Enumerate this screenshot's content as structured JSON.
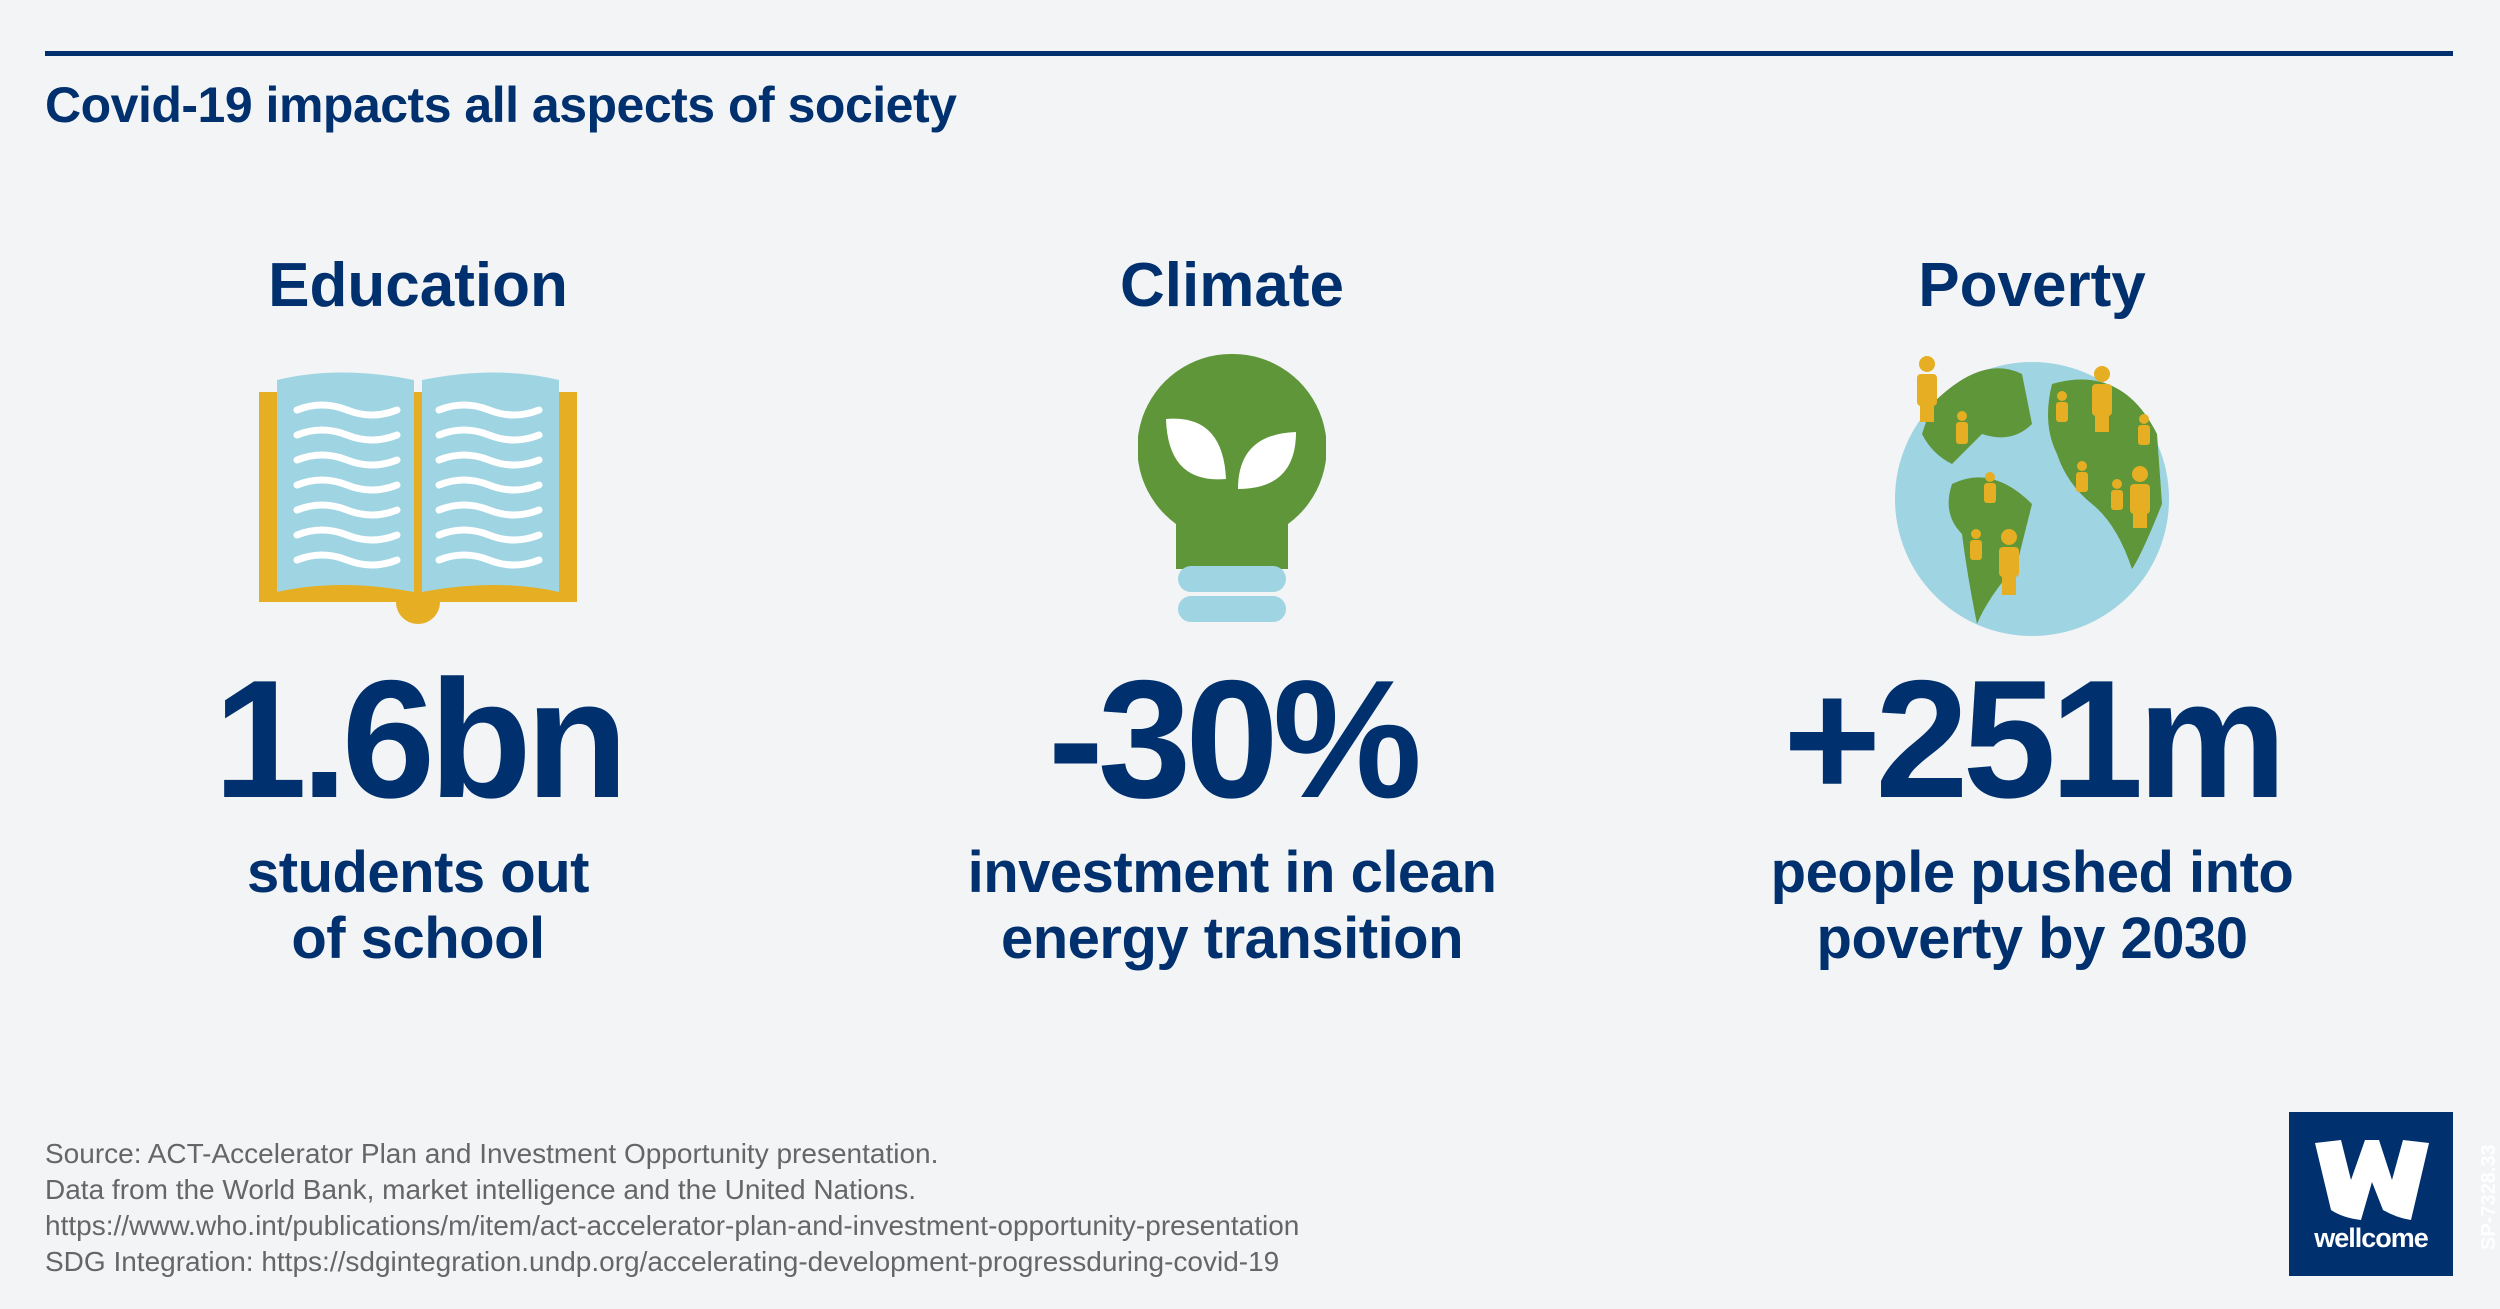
{
  "title": "Covid-19 impacts all aspects of society",
  "columns": [
    {
      "heading": "Education",
      "icon": "open-book-icon",
      "figure": "1.6bn",
      "desc_line1": "students out",
      "desc_line2": "of school"
    },
    {
      "heading": "Climate",
      "icon": "lightbulb-leaf-icon",
      "figure": "-30%",
      "desc_line1": "investment in clean",
      "desc_line2": "energy transition"
    },
    {
      "heading": "Poverty",
      "icon": "globe-people-icon",
      "figure": "+251m",
      "desc_line1": "people pushed into",
      "desc_line2": "poverty by 2030"
    }
  ],
  "footer": [
    "Source: ACT-Accelerator Plan and Investment Opportunity presentation.",
    "Data from the World Bank, market intelligence and the United Nations.",
    "https://www.who.int/publications/m/item/act-accelerator-plan-and-investment-opportunity-presentation",
    "SDG Integration: https://sdgintegration.undp.org/accelerating-development-progressduring-covid-19"
  ],
  "logo": {
    "letter": "W",
    "word": "wellcome"
  },
  "code": "SP-7328.33",
  "colors": {
    "navy": "#00306e",
    "light_blue": "#9fd4e3",
    "gold": "#e6ae22",
    "green": "#5e9639",
    "background": "#f2f4f6"
  }
}
